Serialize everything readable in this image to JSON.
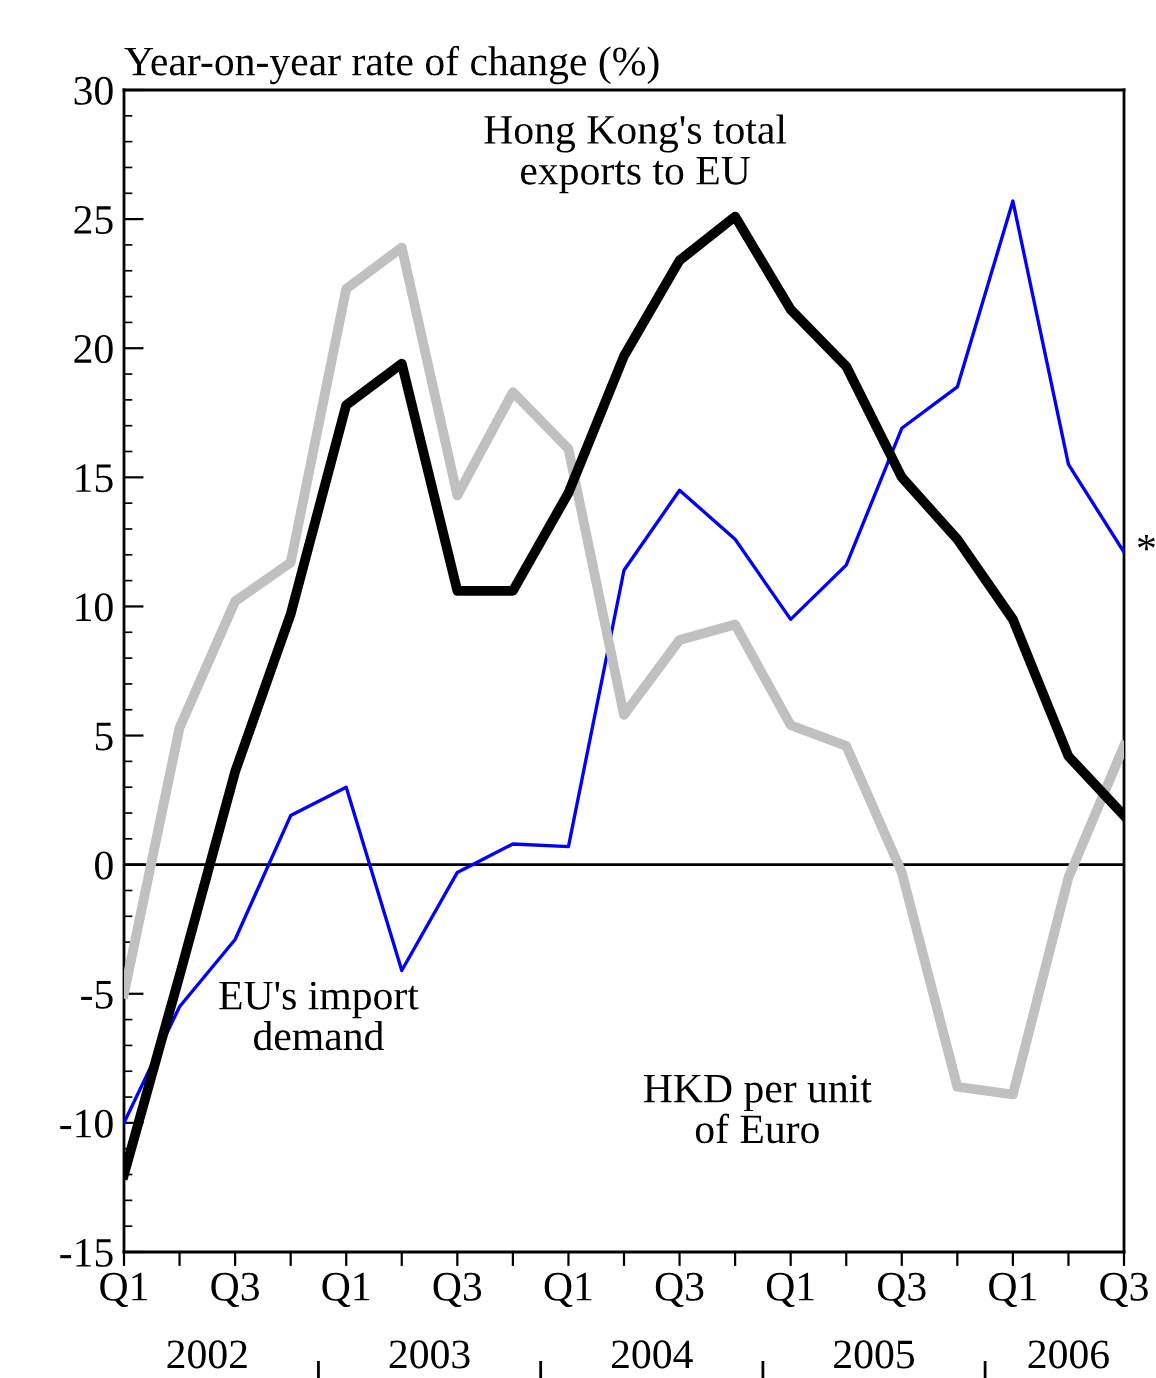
{
  "chart_data": {
    "type": "line",
    "ylabel": "Year-on-year rate of change (%)",
    "categories": [
      "Q1",
      null,
      "Q3",
      null,
      "Q1",
      null,
      "Q3",
      null,
      "Q1",
      null,
      "Q3",
      null,
      "Q1",
      null,
      "Q3",
      null,
      "Q1",
      null,
      "Q3"
    ],
    "series": [
      {
        "name": "Hong Kong's total exports to EU",
        "color": "#000000",
        "values": [
          -12.0,
          -4.3,
          3.6,
          9.7,
          17.8,
          19.4,
          10.6,
          10.6,
          14.4,
          19.7,
          23.4,
          25.1,
          21.5,
          19.3,
          15.0,
          12.6,
          9.5,
          4.2,
          1.9
        ]
      },
      {
        "name": "HKD per unit of Euro",
        "color": "#c0c0c0",
        "values": [
          -5.0,
          5.3,
          10.2,
          11.7,
          22.3,
          23.9,
          14.3,
          18.3,
          16.1,
          5.8,
          8.7,
          9.3,
          5.4,
          4.6,
          -0.3,
          -8.6,
          -8.9,
          -0.5,
          4.6
        ]
      },
      {
        "name": "EU's import demand",
        "color": "#0000ff",
        "values": [
          -10.0,
          -5.5,
          -2.9,
          1.9,
          3.0,
          -4.1,
          -0.3,
          0.8,
          0.7,
          11.4,
          14.5,
          12.6,
          9.5,
          11.6,
          16.9,
          18.5,
          25.7,
          15.5,
          12.1
        ]
      }
    ],
    "ylim": [
      -15,
      30
    ],
    "yticks": [
      -15,
      -10,
      -5,
      0,
      5,
      10,
      15,
      20,
      25,
      30
    ],
    "ref_lines": [
      {
        "axis": "y",
        "value": 0,
        "color": "#000000"
      }
    ],
    "annotations": [
      "2002",
      "2003",
      "2004",
      "2005",
      "2006",
      "*"
    ],
    "grid": false,
    "marker": "none",
    "line_style": "solid"
  }
}
